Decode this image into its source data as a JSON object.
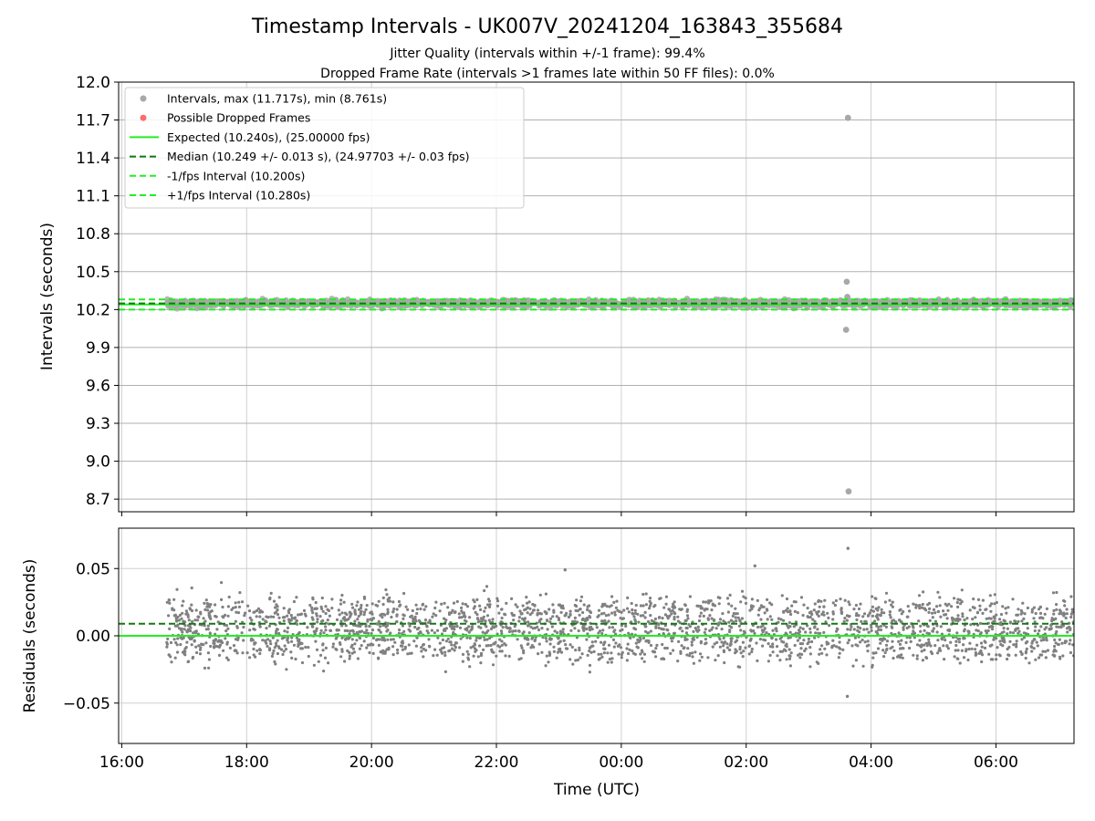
{
  "chart_data": [
    {
      "type": "scatter",
      "panel": "top",
      "title": "Timestamp Intervals - UK007V_20241204_163843_355684",
      "subtitles": [
        "Jitter Quality (intervals within +/-1 frame): 99.4%",
        "Dropped Frame Rate (intervals >1 frames late within 50 FF files): 0.0%"
      ],
      "ylabel": "Intervals (seconds)",
      "ylim": [
        8.6,
        12.0
      ],
      "yticks": [
        "8.7",
        "9.0",
        "9.3",
        "9.6",
        "9.9",
        "10.2",
        "10.5",
        "10.8",
        "11.1",
        "11.4",
        "11.7",
        "12.0"
      ],
      "xlim_hours": [
        15.95,
        31.25
      ],
      "grid": true,
      "legend_position": "upper-left",
      "legend": [
        {
          "label": "Intervals, max (11.717s), min (8.761s)",
          "kind": "marker",
          "color": "#a8a8a8"
        },
        {
          "label": "Possible Dropped Frames",
          "kind": "marker",
          "color": "#ff6b6b"
        },
        {
          "label": "Expected (10.240s), (25.00000 fps)",
          "kind": "solid",
          "color": "#22ee22"
        },
        {
          "label": "Median (10.249 +/- 0.013 s), (24.97703 +/- 0.03 fps)",
          "kind": "dashed",
          "color": "#117a11"
        },
        {
          "label": "-1/fps Interval (10.200s)",
          "kind": "dashed",
          "color": "#22ee22"
        },
        {
          "label": "+1/fps Interval (10.280s)",
          "kind": "dashed",
          "color": "#22ee22"
        }
      ],
      "series": [
        {
          "name": "Intervals, max (11.717s), min (8.761s)",
          "color": "#a8a8a8",
          "x_start_hours": 16.72,
          "x_end_hours": 31.25,
          "typical_value": 10.249,
          "spread": 0.013
        },
        {
          "name": "Possible Dropped Frames",
          "color": "#ff6b6b",
          "points": []
        }
      ],
      "outliers": [
        {
          "x_hours": 27.63,
          "y": 11.717
        },
        {
          "x_hours": 27.61,
          "y": 10.42
        },
        {
          "x_hours": 27.62,
          "y": 10.3
        },
        {
          "x_hours": 27.6,
          "y": 10.04
        },
        {
          "x_hours": 27.64,
          "y": 8.761
        }
      ],
      "reference_lines": [
        {
          "name": "Expected",
          "y": 10.24,
          "color": "#22ee22",
          "style": "solid"
        },
        {
          "name": "Median",
          "y": 10.249,
          "color": "#117a11",
          "style": "dashed"
        },
        {
          "name": "-1/fps Interval",
          "y": 10.2,
          "color": "#22ee22",
          "style": "dashed"
        },
        {
          "name": "+1/fps Interval",
          "y": 10.28,
          "color": "#22ee22",
          "style": "dashed"
        }
      ]
    },
    {
      "type": "scatter",
      "panel": "bottom",
      "xlabel": "Time (UTC)",
      "ylabel": "Residuals (seconds)",
      "ylim": [
        -0.08,
        0.08
      ],
      "yticks": [
        "−0.05",
        "0.00",
        "0.05"
      ],
      "xticks": [
        "16:00",
        "18:00",
        "20:00",
        "22:00",
        "00:00",
        "02:00",
        "04:00",
        "06:00"
      ],
      "xtick_hours": [
        16,
        18,
        20,
        22,
        24,
        26,
        28,
        30
      ],
      "xlim_hours": [
        15.95,
        31.25
      ],
      "grid": true,
      "series": [
        {
          "name": "Residuals",
          "color": "#808080",
          "x_start_hours": 16.72,
          "x_end_hours": 31.25,
          "typical_value": 0.009,
          "spread": 0.013
        }
      ],
      "outliers": [
        {
          "x_hours": 27.63,
          "y": 0.065
        },
        {
          "x_hours": 27.62,
          "y": -0.045
        },
        {
          "x_hours": 26.14,
          "y": 0.052
        },
        {
          "x_hours": 23.1,
          "y": 0.049
        }
      ],
      "reference_lines": [
        {
          "name": "Expected",
          "y": 0.0,
          "color": "#22ee22",
          "style": "solid"
        },
        {
          "name": "Median",
          "y": 0.009,
          "color": "#117a11",
          "style": "dashed"
        }
      ]
    }
  ]
}
